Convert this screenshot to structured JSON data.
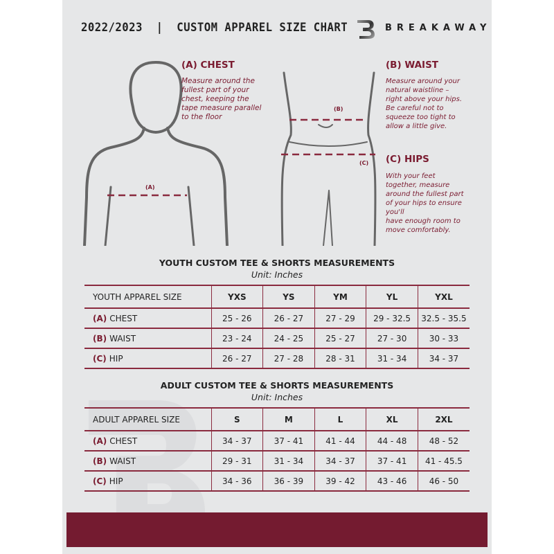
{
  "header": {
    "title": "2022/2023  |  CUSTOM APPAREL SIZE CHART",
    "brand": "BREAKAWAY",
    "logo_letter": "B"
  },
  "guides": {
    "chest": {
      "heading": "(A) CHEST",
      "marker": "(A)",
      "text": [
        "Measure around the",
        "fullest part of your",
        "chest, keeping the",
        "tape measure parallel",
        "to the floor"
      ]
    },
    "waist": {
      "heading": "(B) WAIST",
      "marker": "(B)",
      "text": [
        "Measure around your",
        "natural waistline –",
        "right above your hips.",
        "Be careful not to",
        "squeeze too tight to",
        "allow a little give."
      ]
    },
    "hips": {
      "heading": "(C) HIPS",
      "marker": "(C)",
      "text": [
        "With your feet",
        "together, measure",
        "around the fullest part",
        "of your hips to ensure",
        "you'll",
        "have enough room to",
        "move comfortably."
      ]
    }
  },
  "youth": {
    "title": "YOUTH CUSTOM TEE & SHORTS MEASUREMENTS",
    "unit": "Unit: Inches",
    "columns": [
      "YOUTH APPAREL SIZE",
      "YXS",
      "YS",
      "YM",
      "YL",
      "YXL"
    ],
    "rows": [
      {
        "letter": "(A)",
        "label": "CHEST",
        "values": [
          "25 - 26",
          "26 - 27",
          "27 - 29",
          "29 - 32.5",
          "32.5 - 35.5"
        ]
      },
      {
        "letter": "(B)",
        "label": "WAIST",
        "values": [
          "23 - 24",
          "24 - 25",
          "25 - 27",
          "27 - 30",
          "30 - 33"
        ]
      },
      {
        "letter": "(C)",
        "label": "HIP",
        "values": [
          "26 - 27",
          "27 - 28",
          "28 - 31",
          "31 - 34",
          "34 - 37"
        ]
      }
    ]
  },
  "adult": {
    "title": "ADULT CUSTOM TEE & SHORTS MEASUREMENTS",
    "unit": "Unit: Inches",
    "columns": [
      "ADULT APPAREL SIZE",
      "S",
      "M",
      "L",
      "XL",
      "2XL"
    ],
    "rows": [
      {
        "letter": "(A)",
        "label": "CHEST",
        "values": [
          "34 - 37",
          "37 - 41",
          "41 - 44",
          "44 - 48",
          "48 - 52"
        ]
      },
      {
        "letter": "(B)",
        "label": "WAIST",
        "values": [
          "29 - 31",
          "31 - 34",
          "34 - 37",
          "37 - 41",
          "41 - 45.5"
        ]
      },
      {
        "letter": "(C)",
        "label": "HIP",
        "values": [
          "34 - 36",
          "36 - 39",
          "39 - 42",
          "43 - 46",
          "46 - 50"
        ]
      }
    ]
  },
  "colors": {
    "accent": "#741b30",
    "panel": "#e6e7e8"
  }
}
